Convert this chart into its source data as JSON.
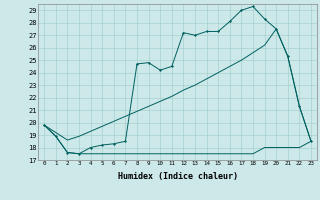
{
  "xlabel": "Humidex (Indice chaleur)",
  "xlim": [
    -0.5,
    23.5
  ],
  "ylim": [
    17,
    29.5
  ],
  "yticks": [
    17,
    18,
    19,
    20,
    21,
    22,
    23,
    24,
    25,
    26,
    27,
    28,
    29
  ],
  "xticks": [
    0,
    1,
    2,
    3,
    4,
    5,
    6,
    7,
    8,
    9,
    10,
    11,
    12,
    13,
    14,
    15,
    16,
    17,
    18,
    19,
    20,
    21,
    22,
    23
  ],
  "bg_color": "#cce8e8",
  "line_color": "#006060",
  "line1_x": [
    0,
    1,
    2,
    3,
    4,
    5,
    6,
    7,
    8,
    9,
    10,
    11,
    12,
    13,
    14,
    15,
    16,
    17,
    18,
    19,
    20,
    21,
    22,
    23
  ],
  "line1_y": [
    19.8,
    18.9,
    17.6,
    17.5,
    18.0,
    18.2,
    18.3,
    18.5,
    24.7,
    24.8,
    24.2,
    24.5,
    27.2,
    27.0,
    27.3,
    27.3,
    28.1,
    29.0,
    29.3,
    28.3,
    27.5,
    25.3,
    21.3,
    18.5
  ],
  "line2_x": [
    0,
    1,
    2,
    3,
    4,
    5,
    6,
    7,
    8,
    9,
    10,
    11,
    12,
    13,
    14,
    15,
    16,
    17,
    18,
    19,
    20,
    21,
    22,
    23
  ],
  "line2_y": [
    19.8,
    19.2,
    18.6,
    18.9,
    19.3,
    19.7,
    20.1,
    20.5,
    20.9,
    21.3,
    21.7,
    22.1,
    22.6,
    23.0,
    23.5,
    24.0,
    24.5,
    25.0,
    25.6,
    26.2,
    27.5,
    25.3,
    21.3,
    18.5
  ],
  "line3_x": [
    0,
    1,
    2,
    3,
    4,
    5,
    6,
    7,
    8,
    9,
    10,
    11,
    12,
    13,
    14,
    15,
    16,
    17,
    18,
    19,
    20,
    21,
    22,
    23
  ],
  "line3_y": [
    19.8,
    18.9,
    17.6,
    17.5,
    17.5,
    17.5,
    17.5,
    17.5,
    17.5,
    17.5,
    17.5,
    17.5,
    17.5,
    17.5,
    17.5,
    17.5,
    17.5,
    17.5,
    17.5,
    18.0,
    18.0,
    18.0,
    18.0,
    18.5
  ]
}
